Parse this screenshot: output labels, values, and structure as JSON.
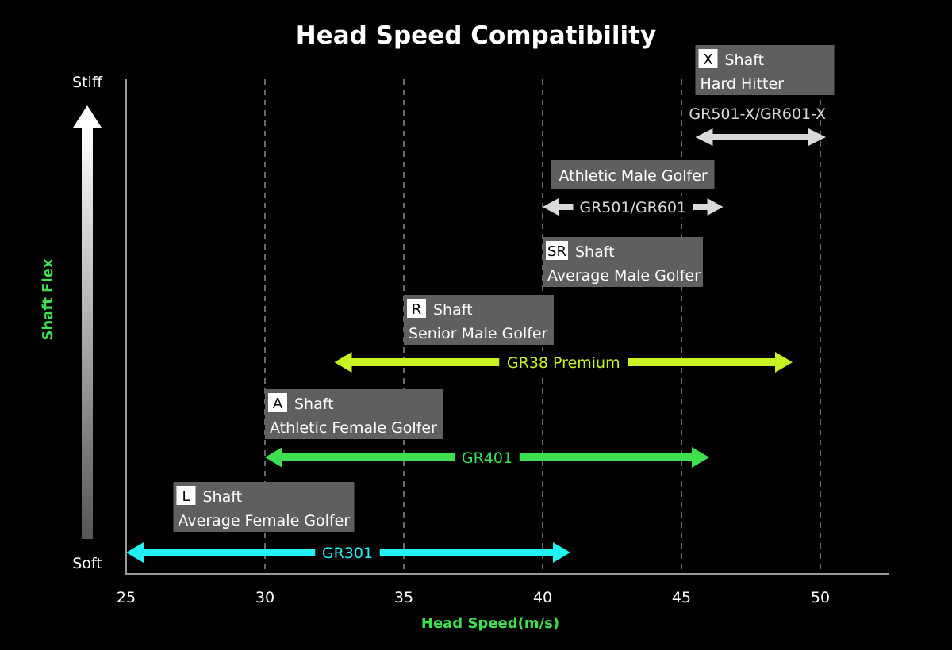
{
  "chart_data": {
    "type": "range",
    "title": "Head Speed Compatibility",
    "xlabel": "Head Speed(m/s)",
    "ylabel": "Shaft Flex",
    "x_ticks": [
      25,
      30,
      35,
      40,
      45,
      50
    ],
    "xlim": [
      25,
      52.5
    ],
    "y_end_labels": {
      "top": "Stiff",
      "bottom": "Soft"
    },
    "grid": {
      "vertical_dashed_at": [
        30,
        35,
        40,
        45,
        50
      ]
    },
    "colors": {
      "gr301": "#22f0f2",
      "gr401": "#3ee04f",
      "gr38": "#c9f322",
      "stiff": "#d9d9d9",
      "box": "#5f5f5f",
      "axis_title": "#3ee04f"
    },
    "ranges": [
      {
        "name": "GR301",
        "from": 25,
        "to": 41,
        "color": "#22f0f2"
      },
      {
        "name": "GR401",
        "from": 30,
        "to": 46,
        "color": "#3ee04f"
      },
      {
        "name": "GR38 Premium",
        "from": 32.5,
        "to": 49,
        "color": "#c9f322"
      },
      {
        "name": "GR501/GR601",
        "from": 40,
        "to": 46.5,
        "color": "#d9d9d9"
      },
      {
        "name": "GR501-X/GR601-X",
        "from": 45.5,
        "to": 50.2,
        "color": "#d9d9d9"
      }
    ],
    "flex_boxes": [
      {
        "badge": "L",
        "label": "Shaft",
        "golfer": "Average Female Golfer",
        "at": 26.7
      },
      {
        "badge": "A",
        "label": "Shaft",
        "golfer": "Athletic Female Golfer",
        "at": 30
      },
      {
        "badge": "R",
        "label": "Shaft",
        "golfer": "Senior Male Golfer",
        "at": 35
      },
      {
        "badge": "SR",
        "label": "Shaft",
        "golfer": "Average Male Golfer",
        "at": 40
      },
      {
        "badge": "",
        "label": "",
        "golfer": "Athletic Male Golfer",
        "at": 40.3
      },
      {
        "badge": "X",
        "label": "Shaft",
        "golfer": "Hard Hitter",
        "at": 45.5
      }
    ]
  }
}
